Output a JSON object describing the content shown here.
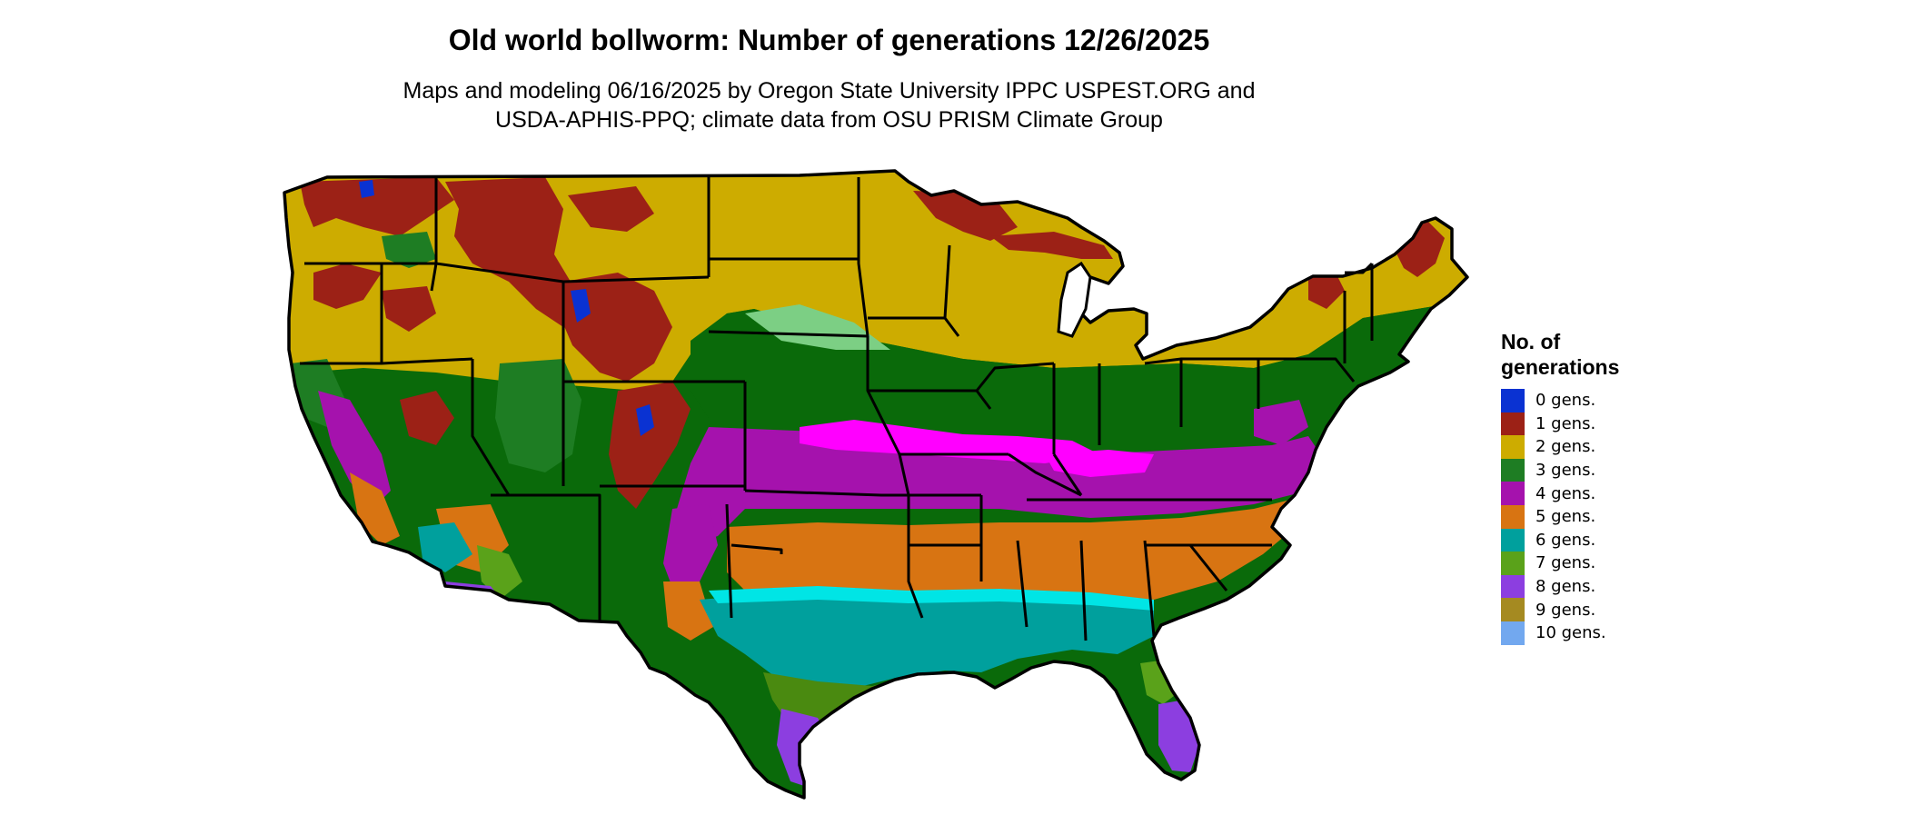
{
  "title": "Old world bollworm: Number of generations 12/26/2025",
  "subtitle_lines": [
    "Maps and modeling 06/16/2025 by Oregon State University IPPC USPEST.ORG and",
    "USDA-APHIS-PPQ; climate data from OSU PRISM Climate Group"
  ],
  "legend": {
    "title_lines": [
      "No. of",
      "generations"
    ],
    "items": [
      {
        "label": "0 gens.",
        "color": "#0a32d2"
      },
      {
        "label": "1 gens.",
        "color": "#9c2116"
      },
      {
        "label": "2 gens.",
        "color": "#cdac00"
      },
      {
        "label": "3 gens.",
        "color": "#1e7d23"
      },
      {
        "label": "4 gens.",
        "color": "#a512ad"
      },
      {
        "label": "5 gens.",
        "color": "#d87412"
      },
      {
        "label": "6 gens.",
        "color": "#00a09d"
      },
      {
        "label": "7 gens.",
        "color": "#5aa21a"
      },
      {
        "label": "8 gens.",
        "color": "#8c3ee0"
      },
      {
        "label": "9 gens.",
        "color": "#a58a21"
      },
      {
        "label": "10 gens.",
        "color": "#72a8ef"
      }
    ]
  },
  "map_colors": {
    "outline": "#000000",
    "dark_green": "#0a6a0a",
    "light_green": "#7ccf84",
    "magenta": "#ff00ff",
    "cyan": "#00e5e5",
    "yellow": "#ffff00",
    "olive_green": "#4a8a10",
    "pink": "#ff44cc"
  }
}
